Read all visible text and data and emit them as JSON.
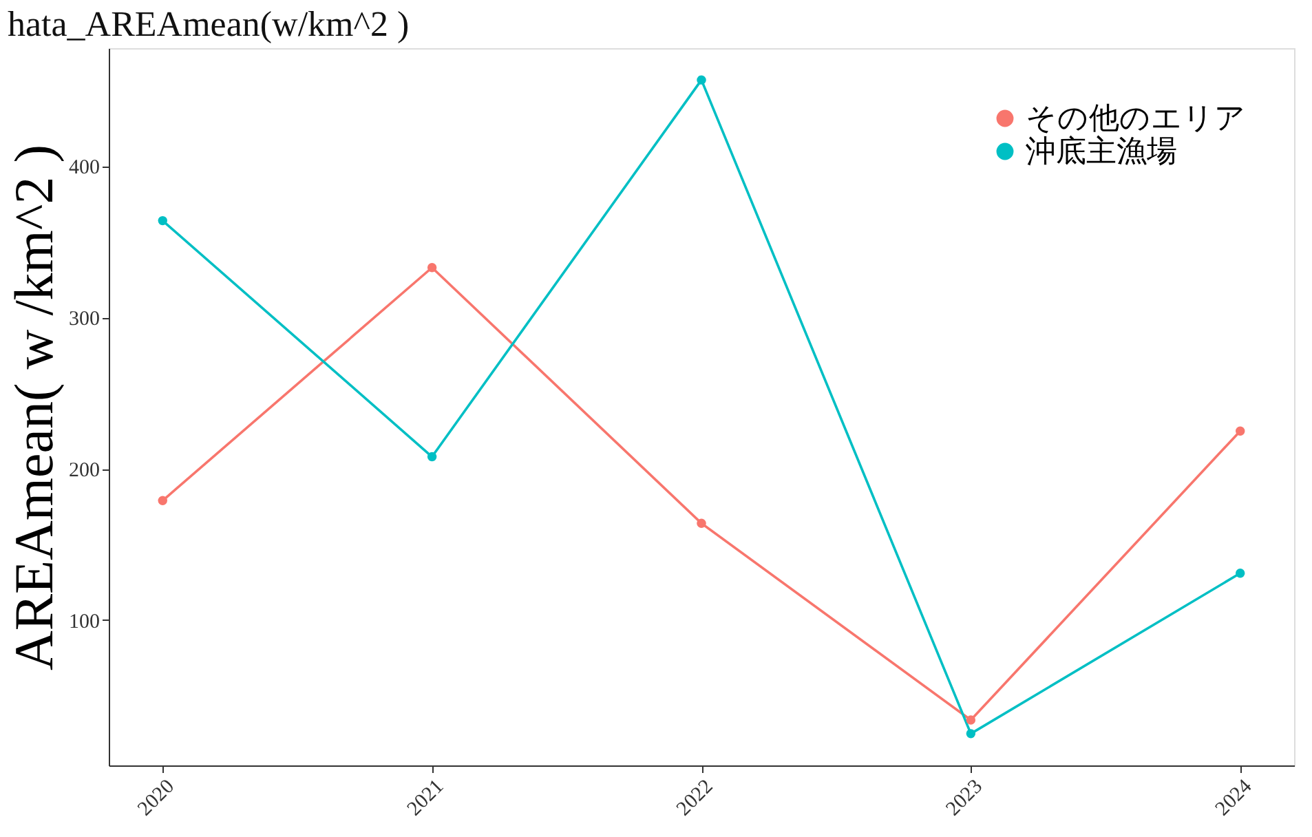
{
  "chart_data": {
    "type": "line",
    "title": "hata_AREAmean(w/km^2 )",
    "ylabel": "AREAmean( w /km^2 )",
    "categories": [
      "2020",
      "2021",
      "2022",
      "2023",
      "2024"
    ],
    "series": [
      {
        "name": "その他のエリア",
        "color": "#f8766d",
        "values": [
          179,
          333,
          164,
          34,
          225
        ]
      },
      {
        "name": "沖底主漁場",
        "color": "#00bfc4",
        "values": [
          364,
          208,
          457,
          25,
          131
        ]
      }
    ],
    "ylim": [
      4,
      478
    ],
    "yticks": [
      100,
      200,
      300,
      400
    ],
    "grid": false,
    "legend": "top right",
    "marker": "circle",
    "line_style": "solid"
  }
}
